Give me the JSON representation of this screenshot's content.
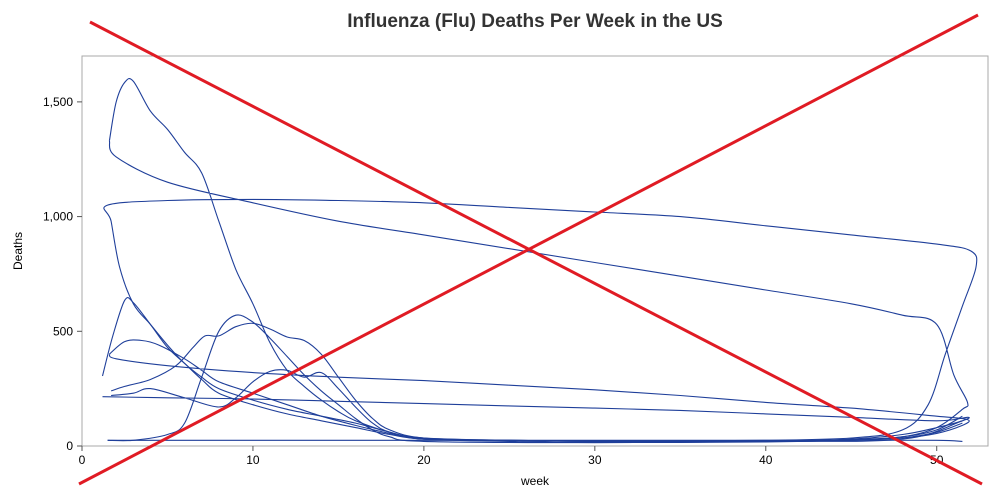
{
  "chart_data": {
    "type": "line",
    "title": "Influenza (Flu) Deaths Per Week in the US",
    "xlabel": "week",
    "ylabel": "Deaths",
    "xlim": [
      0,
      53
    ],
    "ylim": [
      0,
      1700
    ],
    "x_ticks": [
      0,
      10,
      20,
      30,
      40,
      50
    ],
    "y_ticks": [
      0,
      500,
      1000,
      1500
    ],
    "x_tick_labels": [
      "0",
      "10",
      "20",
      "30",
      "40",
      "50"
    ],
    "y_tick_labels": [
      "0",
      "500",
      "1,000",
      "1,500"
    ],
    "grid": false,
    "legend": "none",
    "line_color": "#1f3f9a",
    "overlay_color": "#e01b24",
    "overlay": "red X crossing out the chart",
    "series": [
      {
        "points": [
          [
            1.6,
            1330
          ],
          [
            2,
            1500
          ],
          [
            2.5,
            1585
          ],
          [
            3,
            1590
          ],
          [
            4,
            1460
          ],
          [
            5,
            1380
          ],
          [
            6,
            1280
          ],
          [
            7,
            1190
          ],
          [
            8,
            980
          ],
          [
            9,
            770
          ],
          [
            10,
            620
          ],
          [
            11,
            450
          ],
          [
            12,
            330
          ],
          [
            13,
            260
          ],
          [
            14,
            200
          ],
          [
            15,
            150
          ],
          [
            16,
            110
          ],
          [
            18,
            60
          ],
          [
            20,
            35
          ],
          [
            25,
            25
          ],
          [
            30,
            20
          ],
          [
            35,
            22
          ],
          [
            40,
            25
          ],
          [
            45,
            35
          ],
          [
            48,
            70
          ],
          [
            49.5,
            180
          ],
          [
            50.5,
            400
          ],
          [
            51.5,
            610
          ],
          [
            52.3,
            780
          ],
          [
            52,
            850
          ],
          [
            50,
            880
          ],
          [
            45,
            920
          ],
          [
            40,
            960
          ],
          [
            35,
            1000
          ],
          [
            30,
            1020
          ],
          [
            25,
            1040
          ],
          [
            20,
            1060
          ],
          [
            15,
            1070
          ],
          [
            10,
            1075
          ],
          [
            5,
            1070
          ],
          [
            1.5,
            1050
          ],
          [
            1.7,
            980
          ],
          [
            2.2,
            780
          ],
          [
            3,
            620
          ],
          [
            4,
            530
          ],
          [
            5,
            440
          ],
          [
            6,
            360
          ],
          [
            7,
            300
          ],
          [
            8,
            250
          ],
          [
            10,
            200
          ],
          [
            12,
            160
          ],
          [
            14,
            130
          ],
          [
            16,
            100
          ],
          [
            18,
            60
          ],
          [
            20,
            30
          ],
          [
            25,
            25
          ],
          [
            30,
            20
          ],
          [
            35,
            18
          ],
          [
            40,
            20
          ],
          [
            45,
            25
          ],
          [
            48,
            40
          ],
          [
            50,
            80
          ],
          [
            51.5,
            160
          ],
          [
            51.8,
            190
          ],
          [
            51,
            310
          ],
          [
            50,
            530
          ],
          [
            48,
            570
          ],
          [
            45,
            620
          ],
          [
            40,
            680
          ],
          [
            35,
            740
          ],
          [
            30,
            800
          ],
          [
            25,
            860
          ],
          [
            20,
            920
          ],
          [
            15,
            980
          ],
          [
            10,
            1060
          ],
          [
            5,
            1150
          ],
          [
            2,
            1260
          ],
          [
            1.6,
            1330
          ]
        ]
      },
      {
        "points": [
          [
            1.2,
            305
          ],
          [
            1.8,
            480
          ],
          [
            2.5,
            635
          ],
          [
            3,
            625
          ],
          [
            4,
            530
          ],
          [
            5,
            430
          ],
          [
            6,
            360
          ],
          [
            7,
            290
          ],
          [
            8,
            230
          ],
          [
            10,
            180
          ],
          [
            12,
            140
          ],
          [
            14,
            110
          ],
          [
            16,
            80
          ],
          [
            18,
            50
          ],
          [
            20,
            30
          ],
          [
            25,
            25
          ],
          [
            30,
            20
          ],
          [
            40,
            20
          ],
          [
            45,
            25
          ],
          [
            48,
            35
          ],
          [
            50,
            60
          ],
          [
            51.5,
            100
          ]
        ]
      },
      {
        "points": [
          [
            1.6,
            400
          ],
          [
            2.5,
            455
          ],
          [
            3.5,
            460
          ],
          [
            4.5,
            440
          ],
          [
            6,
            380
          ],
          [
            7,
            330
          ],
          [
            8,
            280
          ],
          [
            10,
            230
          ],
          [
            12,
            180
          ],
          [
            14,
            130
          ],
          [
            16,
            90
          ],
          [
            18,
            55
          ],
          [
            20,
            30
          ],
          [
            25,
            20
          ],
          [
            30,
            15
          ],
          [
            40,
            18
          ],
          [
            45,
            25
          ],
          [
            48,
            35
          ],
          [
            50,
            55
          ],
          [
            51.5,
            90
          ],
          [
            51.8,
            115
          ],
          [
            50,
            130
          ],
          [
            45,
            165
          ],
          [
            40,
            190
          ],
          [
            35,
            220
          ],
          [
            30,
            245
          ],
          [
            25,
            265
          ],
          [
            20,
            285
          ],
          [
            15,
            300
          ],
          [
            10,
            320
          ],
          [
            5,
            350
          ],
          [
            2,
            380
          ],
          [
            1.6,
            400
          ]
        ]
      },
      {
        "points": [
          [
            1.7,
            240
          ],
          [
            2.5,
            260
          ],
          [
            4,
            290
          ],
          [
            5.5,
            350
          ],
          [
            6.5,
            430
          ],
          [
            7.2,
            480
          ],
          [
            8,
            480
          ],
          [
            9,
            520
          ],
          [
            10,
            535
          ],
          [
            11,
            510
          ],
          [
            12,
            475
          ],
          [
            13,
            460
          ],
          [
            14,
            400
          ],
          [
            15,
            300
          ],
          [
            16,
            200
          ],
          [
            17,
            120
          ],
          [
            18,
            70
          ],
          [
            20,
            35
          ],
          [
            25,
            25
          ],
          [
            30,
            22
          ],
          [
            40,
            22
          ],
          [
            45,
            28
          ],
          [
            48,
            40
          ],
          [
            50,
            70
          ],
          [
            51.5,
            130
          ]
        ]
      },
      {
        "points": [
          [
            1.5,
            25
          ],
          [
            3,
            25
          ],
          [
            5,
            50
          ],
          [
            6,
            100
          ],
          [
            7,
            300
          ],
          [
            8,
            500
          ],
          [
            9,
            570
          ],
          [
            10,
            540
          ],
          [
            11,
            470
          ],
          [
            12,
            390
          ],
          [
            13,
            310
          ],
          [
            14,
            240
          ],
          [
            15,
            180
          ],
          [
            16,
            120
          ],
          [
            17,
            70
          ],
          [
            18,
            40
          ],
          [
            20,
            20
          ],
          [
            30,
            15
          ],
          [
            40,
            20
          ],
          [
            48,
            30
          ],
          [
            51.5,
            110
          ]
        ]
      },
      {
        "points": [
          [
            1.7,
            220
          ],
          [
            3,
            230
          ],
          [
            4,
            250
          ],
          [
            6,
            210
          ],
          [
            8,
            170
          ],
          [
            9,
            210
          ],
          [
            10,
            280
          ],
          [
            11,
            325
          ],
          [
            12,
            330
          ],
          [
            13,
            300
          ],
          [
            14,
            320
          ],
          [
            15,
            250
          ],
          [
            16,
            170
          ],
          [
            17,
            100
          ],
          [
            18,
            60
          ],
          [
            20,
            30
          ],
          [
            25,
            25
          ],
          [
            30,
            20
          ],
          [
            40,
            20
          ],
          [
            45,
            30
          ],
          [
            48,
            50
          ],
          [
            50,
            80
          ],
          [
            51.5,
            110
          ],
          [
            51.8,
            125
          ],
          [
            50,
            110
          ],
          [
            45,
            125
          ],
          [
            40,
            140
          ],
          [
            35,
            155
          ],
          [
            30,
            165
          ],
          [
            25,
            175
          ],
          [
            20,
            185
          ],
          [
            15,
            195
          ],
          [
            10,
            205
          ],
          [
            5,
            210
          ],
          [
            1.2,
            215
          ]
        ]
      },
      {
        "points": [
          [
            1.5,
            25
          ],
          [
            10,
            25
          ],
          [
            20,
            25
          ],
          [
            30,
            25
          ],
          [
            40,
            25
          ],
          [
            45,
            25
          ],
          [
            50,
            25
          ],
          [
            51.5,
            20
          ]
        ]
      }
    ]
  }
}
